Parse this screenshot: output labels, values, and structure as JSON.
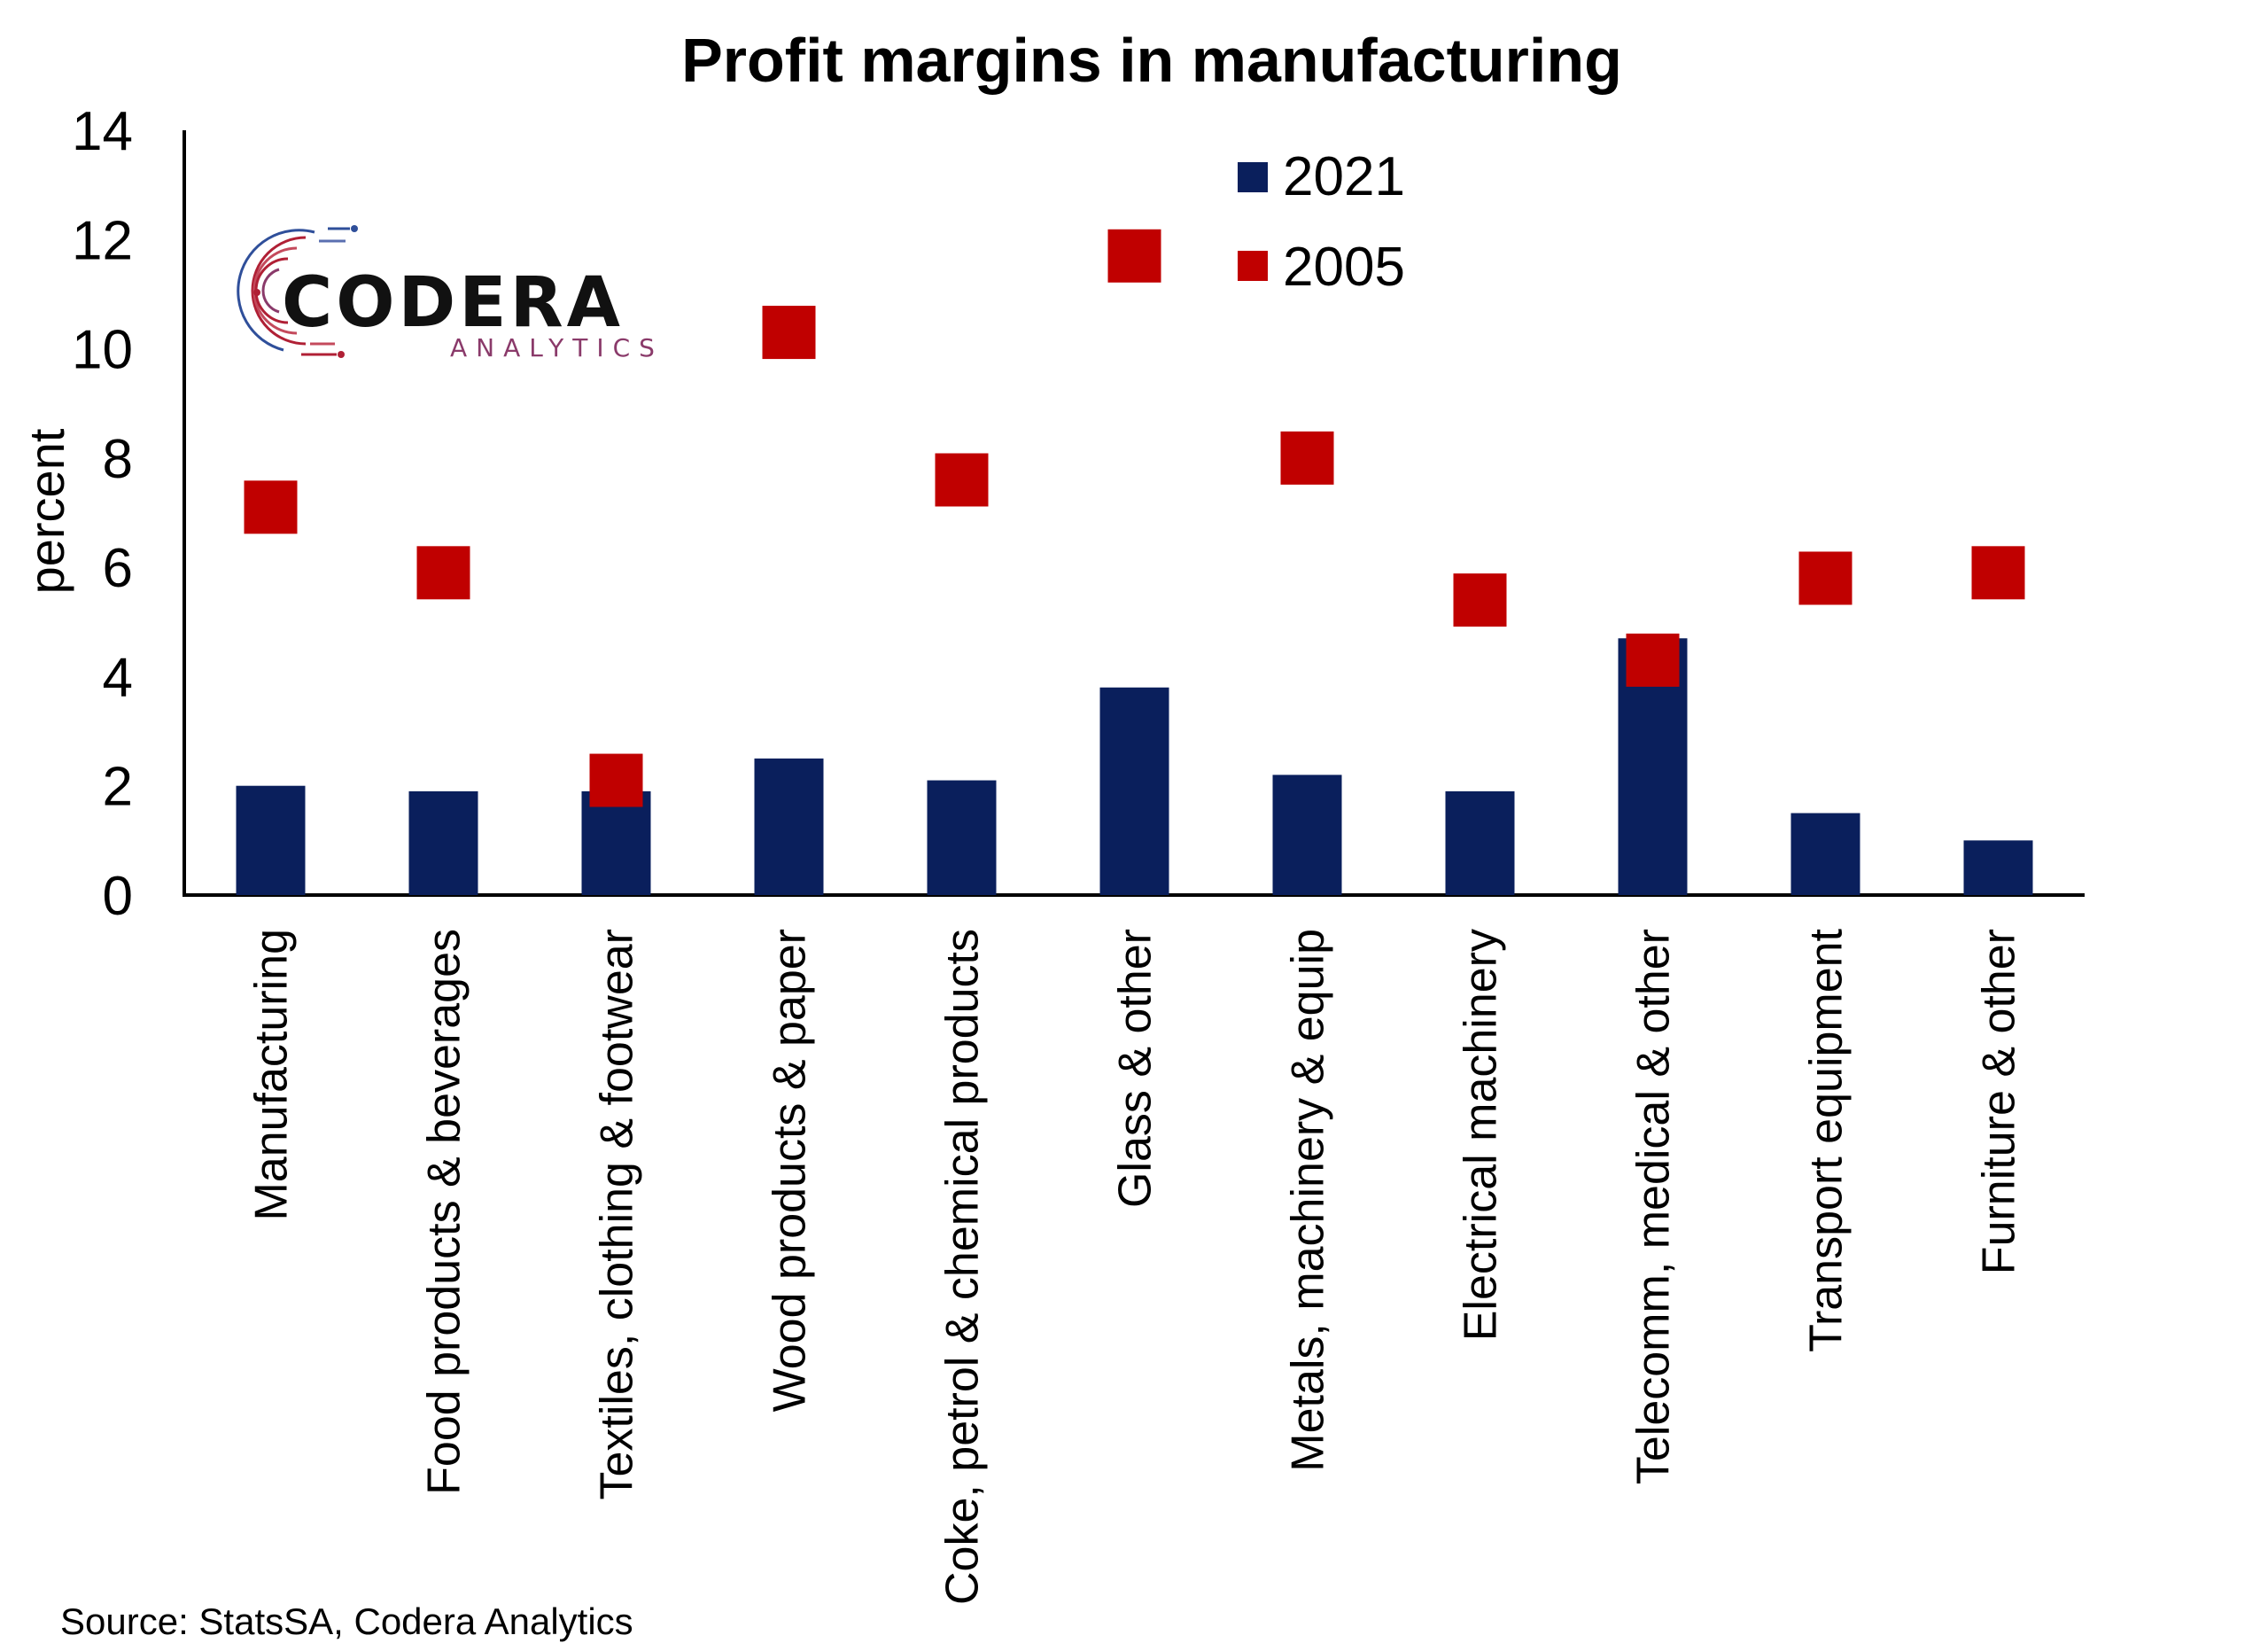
{
  "chart_data": {
    "type": "bar",
    "title": "Profit margins in manufacturing",
    "ylabel": "percent",
    "xlabel": "",
    "ylim": [
      0,
      14
    ],
    "yticks": [
      0,
      2,
      4,
      6,
      8,
      10,
      12,
      14
    ],
    "grid": false,
    "legend_position": "top-center",
    "categories": [
      "Manufacturing",
      "Food products & beverages",
      "Textiles, clothing & footwear",
      "Wood products & paper",
      "Coke, petrol & chemical products",
      "Glass & other",
      "Metals, machinery & equip",
      "Electrical machinery",
      "Telecomm, medical & other",
      "Transport equipment",
      "Furniture & other"
    ],
    "series": [
      {
        "name": "2021",
        "mark": "bar",
        "color": "#0a1f5c",
        "values": [
          2.0,
          1.9,
          1.9,
          2.5,
          2.1,
          3.8,
          2.2,
          1.9,
          4.7,
          1.5,
          1.0
        ]
      },
      {
        "name": "2005",
        "mark": "square",
        "color": "#c00000",
        "values": [
          7.1,
          5.9,
          2.1,
          10.3,
          7.6,
          11.7,
          8.0,
          5.4,
          4.3,
          5.8,
          5.9
        ]
      }
    ],
    "source": "Source: StatsSA, Codera Analytics"
  },
  "logo": {
    "name": "CODERA",
    "tagline": "ANALYTICS"
  },
  "colors": {
    "bar_2021": "#0a1f5c",
    "marker_2005": "#c00000",
    "logo_red": "#b02035",
    "logo_blue": "#2f4f9a"
  }
}
